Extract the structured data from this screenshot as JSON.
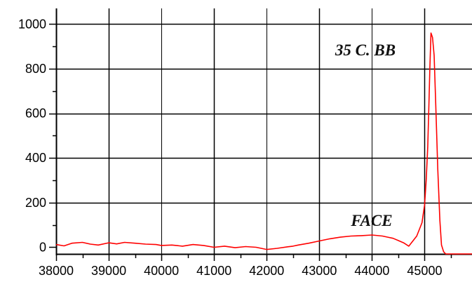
{
  "chart_data": {
    "type": "line",
    "title": "",
    "xlabel": "",
    "ylabel": "",
    "xlim": [
      38000,
      45900
    ],
    "ylim": [
      -30,
      1070
    ],
    "x_major_ticks": [
      38000,
      39000,
      40000,
      41000,
      42000,
      43000,
      44000,
      45000
    ],
    "x_minor_ticks": [
      38500,
      39500,
      40500,
      41500,
      42500,
      43500,
      44500,
      45500
    ],
    "y_major_ticks": [
      0,
      200,
      400,
      600,
      800,
      1000
    ],
    "y_minor_ticks": [
      100,
      300,
      500,
      700,
      900
    ],
    "x_tick_labels": [
      "38000",
      "39000",
      "40000",
      "41000",
      "42000",
      "43000",
      "44000",
      "45000"
    ],
    "y_tick_labels": [
      "0",
      "200",
      "400",
      "600",
      "800",
      "1000"
    ],
    "grid": true,
    "legend": "none",
    "colors": {
      "series": "#ff0000",
      "grid": "#000000",
      "axis": "#000000",
      "background": "#ffffff"
    },
    "series": [
      {
        "x": [
          38000,
          38150,
          38300,
          38500,
          38650,
          38800,
          39000,
          39150,
          39300,
          39500,
          39700,
          39900,
          40000,
          40200,
          40400,
          40600,
          40800,
          41000,
          41200,
          41400,
          41600,
          41800,
          42000,
          42200,
          42400,
          42500,
          42600,
          42800,
          43000,
          43200,
          43400,
          43600,
          43800,
          44000,
          44200,
          44300,
          44400,
          44500,
          44600,
          44700,
          44850,
          44950,
          45000,
          45030,
          45060,
          45080,
          45100,
          45120,
          45150,
          45180,
          45210,
          45250,
          45290,
          45320,
          45360,
          45400,
          45600,
          45900
        ],
        "y": [
          12,
          6,
          18,
          22,
          14,
          10,
          20,
          15,
          22,
          18,
          14,
          12,
          8,
          10,
          5,
          12,
          8,
          0,
          5,
          -2,
          3,
          0,
          -10,
          -5,
          2,
          5,
          10,
          18,
          28,
          38,
          45,
          50,
          52,
          55,
          50,
          45,
          40,
          30,
          20,
          5,
          50,
          110,
          190,
          300,
          450,
          620,
          800,
          960,
          940,
          860,
          650,
          350,
          120,
          10,
          -20,
          -30,
          -30,
          -30
        ]
      }
    ],
    "annotations": [
      {
        "text": "35 C. BB",
        "x": 43300,
        "y": 860
      },
      {
        "text": "FACE",
        "x": 43600,
        "y": 95
      }
    ]
  }
}
